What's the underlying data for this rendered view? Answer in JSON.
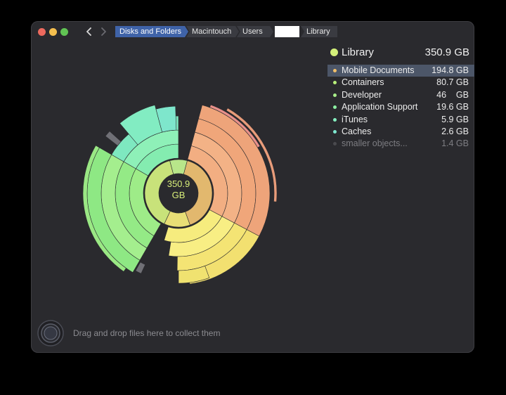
{
  "window": {
    "controls": {
      "close": "close",
      "minimize": "minimize",
      "maximize": "maximize"
    },
    "nav": {
      "back_icon": "chevron-left-icon",
      "forward_icon": "chevron-right-icon"
    }
  },
  "breadcrumbs": [
    "Disks and Folders",
    "Macintouch",
    "Users",
    "",
    "Library"
  ],
  "chart": {
    "center_label": "350.9\nGB"
  },
  "legend": {
    "title": "Library",
    "total": "350.9 GB",
    "title_color": "#d4f07a",
    "items": [
      {
        "name": "Mobile Documents",
        "size": "194.8 GB",
        "color": "#f2c06a",
        "selected": true
      },
      {
        "name": "Containers",
        "size": "80.7 GB",
        "color": "#b8f07a",
        "selected": false
      },
      {
        "name": "Developer",
        "size": "46    GB",
        "color": "#a8ee8a",
        "selected": false
      },
      {
        "name": "Application Support",
        "size": "19.6 GB",
        "color": "#8cf0a2",
        "selected": false
      },
      {
        "name": "iTunes",
        "size": "5.9 GB",
        "color": "#86f0c0",
        "selected": false
      },
      {
        "name": "Caches",
        "size": "2.6 GB",
        "color": "#7ee8d0",
        "selected": false
      },
      {
        "name": "smaller objects...",
        "size": "1.4 GB",
        "color": "#4a4a4e",
        "selected": false
      }
    ]
  },
  "dropzone": {
    "text": "Drag and drop files here to collect them",
    "icon": "collector-icon"
  }
}
